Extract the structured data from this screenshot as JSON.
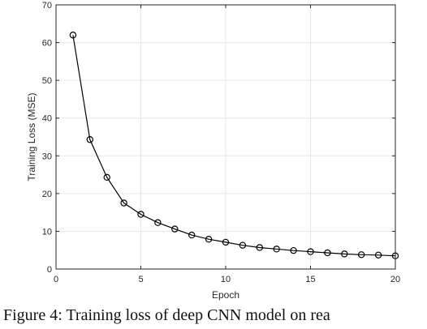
{
  "caption": "Figure 4:  Training loss of deep CNN model on rea",
  "chart_data": {
    "type": "line",
    "xlabel": "Epoch",
    "ylabel": "Training Loss (MSE)",
    "xlim": [
      0,
      20
    ],
    "ylim": [
      0,
      70
    ],
    "xticks": [
      0,
      5,
      10,
      15,
      20
    ],
    "yticks": [
      0,
      10,
      20,
      30,
      40,
      50,
      60,
      70
    ],
    "grid": true,
    "marker": "circle-open",
    "line_color": "#000000",
    "grid_color": "#e6e6e6",
    "axis_color": "#262626",
    "x": [
      1,
      2,
      3,
      4,
      5,
      6,
      7,
      8,
      9,
      10,
      11,
      12,
      13,
      14,
      15,
      16,
      17,
      18,
      19,
      20
    ],
    "y": [
      62.0,
      34.3,
      24.3,
      17.5,
      14.5,
      12.3,
      10.6,
      9.0,
      7.9,
      7.1,
      6.3,
      5.7,
      5.3,
      4.9,
      4.6,
      4.3,
      4.0,
      3.8,
      3.7,
      3.5
    ]
  }
}
